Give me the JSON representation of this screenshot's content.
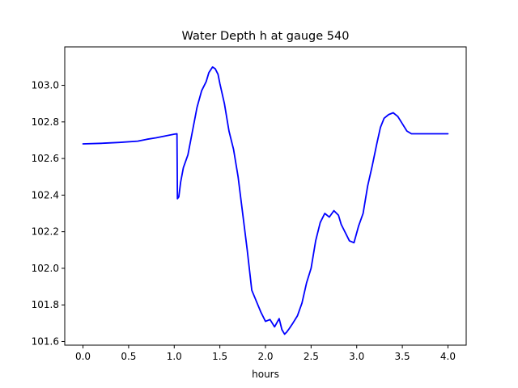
{
  "chart_data": {
    "type": "line",
    "title": "Water Depth h at gauge 540",
    "xlabel": "hours",
    "ylabel": "",
    "xlim": [
      -0.2,
      4.2
    ],
    "ylim": [
      101.58,
      103.21
    ],
    "xticks": [
      0.0,
      0.5,
      1.0,
      1.5,
      2.0,
      2.5,
      3.0,
      3.5,
      4.0
    ],
    "xtick_labels": [
      "0.0",
      "0.5",
      "1.0",
      "1.5",
      "2.0",
      "2.5",
      "3.0",
      "3.5",
      "4.0"
    ],
    "yticks": [
      101.6,
      101.8,
      102.0,
      102.2,
      102.4,
      102.6,
      102.8,
      103.0
    ],
    "ytick_labels": [
      "101.6",
      "101.8",
      "102.0",
      "102.2",
      "102.4",
      "102.6",
      "102.8",
      "103.0"
    ],
    "grid": false,
    "series": [
      {
        "color": "#0000ff",
        "x": [
          0.0,
          0.2,
          0.4,
          0.6,
          0.7,
          0.8,
          0.9,
          1.0,
          1.03,
          1.035,
          1.05,
          1.07,
          1.1,
          1.15,
          1.2,
          1.25,
          1.3,
          1.35,
          1.38,
          1.42,
          1.45,
          1.48,
          1.5,
          1.55,
          1.6,
          1.65,
          1.7,
          1.75,
          1.8,
          1.85,
          1.9,
          1.95,
          2.0,
          2.05,
          2.1,
          2.15,
          2.18,
          2.21,
          2.23,
          2.26,
          2.3,
          2.35,
          2.4,
          2.45,
          2.5,
          2.55,
          2.6,
          2.65,
          2.7,
          2.75,
          2.8,
          2.83,
          2.87,
          2.92,
          2.97,
          3.02,
          3.07,
          3.12,
          3.17,
          3.22,
          3.26,
          3.3,
          3.35,
          3.4,
          3.45,
          3.5,
          3.55,
          3.6,
          3.65,
          3.7,
          3.75,
          3.8,
          3.85,
          3.9,
          3.95,
          4.0
        ],
        "y": [
          102.68,
          102.683,
          102.688,
          102.695,
          102.705,
          102.713,
          102.723,
          102.733,
          102.735,
          102.38,
          102.39,
          102.47,
          102.55,
          102.62,
          102.75,
          102.88,
          102.97,
          103.02,
          103.07,
          103.1,
          103.09,
          103.06,
          103.01,
          102.9,
          102.75,
          102.65,
          102.5,
          102.3,
          102.1,
          101.88,
          101.82,
          101.76,
          101.71,
          101.72,
          101.68,
          101.725,
          101.665,
          101.64,
          101.65,
          101.67,
          101.7,
          101.74,
          101.81,
          101.92,
          102.0,
          102.15,
          102.25,
          102.3,
          102.28,
          102.315,
          102.29,
          102.24,
          102.2,
          102.15,
          102.14,
          102.23,
          102.3,
          102.45,
          102.56,
          102.68,
          102.77,
          102.82,
          102.84,
          102.85,
          102.83,
          102.79,
          102.75,
          102.735,
          102.735,
          102.735,
          102.735,
          102.735,
          102.735,
          102.735,
          102.735,
          102.735
        ]
      }
    ]
  }
}
